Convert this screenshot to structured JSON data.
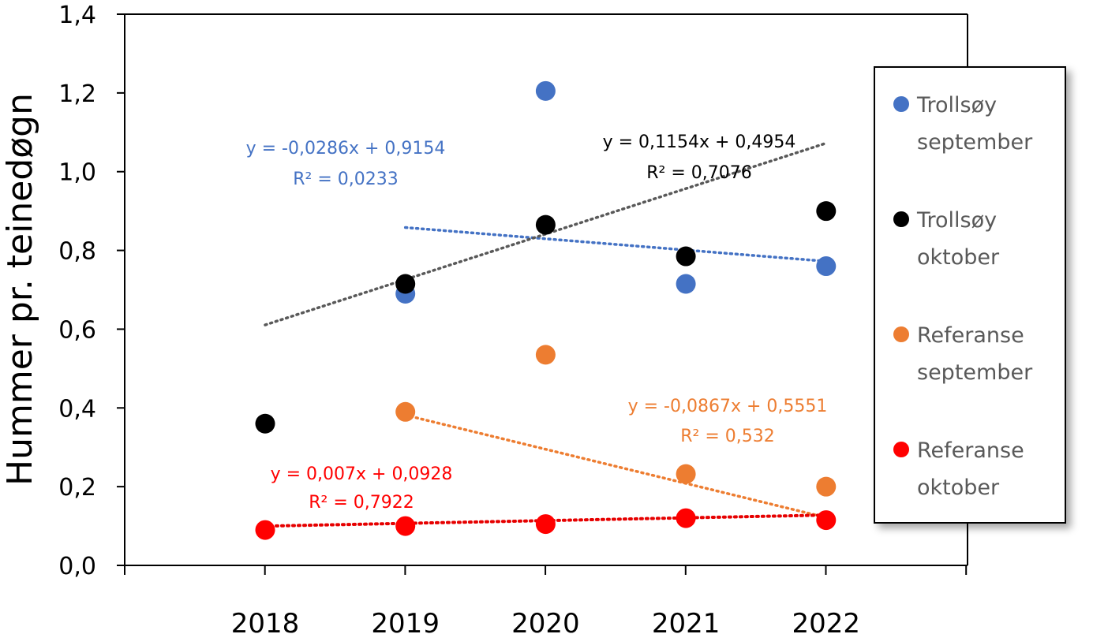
{
  "chart_data": {
    "type": "scatter",
    "title": "",
    "ylabel": "Hummer pr. teinedøgn",
    "xlabel": "",
    "categories": [
      "2018",
      "2019",
      "2020",
      "2021",
      "2022"
    ],
    "y_ticks": [
      "0,0",
      "0,2",
      "0,4",
      "0,6",
      "0,8",
      "1,0",
      "1,2",
      "1,4"
    ],
    "ylim": [
      0,
      1.4
    ],
    "grid": false,
    "legend_position": "right",
    "series": [
      {
        "name_lines": [
          "Trollsøy",
          "september"
        ],
        "color": "#4472c4",
        "values": [
          null,
          0.69,
          1.205,
          0.715,
          0.76
        ],
        "trendline": {
          "color": "#4472c4",
          "slope": -0.0286,
          "intercept": 0.9154,
          "x_from": 2,
          "x_to": 5,
          "equation": "y = -0,0286x + 0,9154",
          "r2": "R² = 0,0233"
        }
      },
      {
        "name_lines": [
          "Trollsøy",
          "oktober"
        ],
        "color": "#000000",
        "values": [
          0.36,
          0.715,
          0.865,
          0.785,
          0.9
        ],
        "trendline": {
          "color": "#595959",
          "slope": 0.1154,
          "intercept": 0.4954,
          "x_from": 1,
          "x_to": 5,
          "equation": "y = 0,1154x + 0,4954",
          "r2": "R² = 0,7076"
        }
      },
      {
        "name_lines": [
          "Referanse",
          "september"
        ],
        "color": "#ed7d31",
        "values": [
          null,
          0.39,
          0.535,
          0.232,
          0.2
        ],
        "trendline": {
          "color": "#ed7d31",
          "slope": -0.0867,
          "intercept": 0.5551,
          "x_from": 2,
          "x_to": 5,
          "equation": "y = -0,0867x + 0,5551",
          "r2": "R² = 0,532"
        }
      },
      {
        "name_lines": [
          "Referanse",
          "oktober"
        ],
        "color": "#ff0000",
        "values": [
          0.09,
          0.1,
          0.105,
          0.12,
          0.115
        ],
        "trendline": {
          "color": "#e60000",
          "slope": 0.007,
          "intercept": 0.0928,
          "x_from": 1,
          "x_to": 5,
          "equation": "y = 0,007x + 0,0928",
          "r2": "R² = 0,7922"
        }
      }
    ]
  }
}
